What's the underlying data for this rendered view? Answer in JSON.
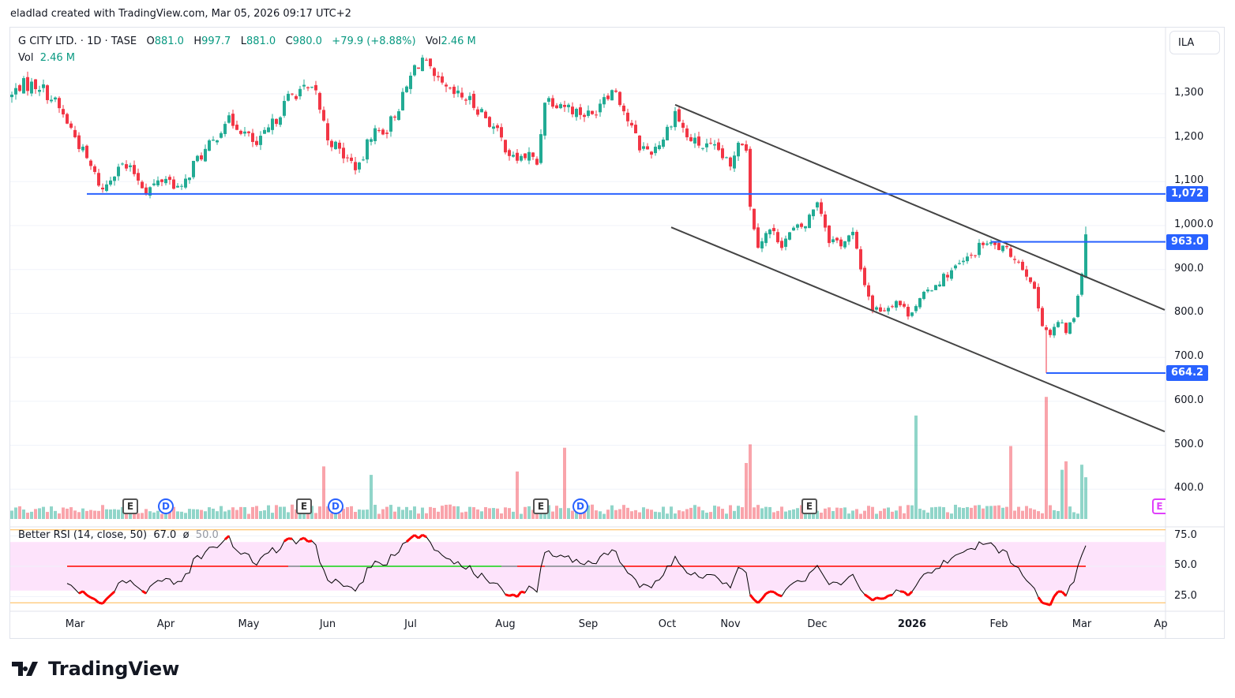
{
  "attribution": "eladlad created with TradingView.com, Mar 05, 2026 09:17 UTC+2",
  "header": {
    "symbol": "G CITY LTD. · 1D · TASE",
    "o_label": "O",
    "open": "881.0",
    "h_label": "H",
    "high": "997.7",
    "l_label": "L",
    "low": "881.0",
    "c_label": "C",
    "close": "980.0",
    "change": "+79.9 (+8.88%)",
    "vol_label": "Vol",
    "vol": "2.46 M"
  },
  "volume_legend": {
    "label": "Vol",
    "value": "2.46 M"
  },
  "rsi_legend": {
    "name": "Better RSI (14, close, 50)",
    "value": "67.0",
    "sym": "ø",
    "avg": "50.0"
  },
  "currency": "ILA",
  "logo": "TradingView",
  "colors": {
    "up": "#22ab94",
    "down": "#f23645",
    "level": "#2962ff",
    "channel": "#444",
    "rsi_band": "#fde3fb",
    "rsi_limit": "#ffb74d"
  },
  "chart_data": {
    "type": "candlestick",
    "title": "G CITY LTD. · 1D · TASE",
    "ylabel": "ILA",
    "ylim": [
      332,
      1397
    ],
    "price_ticks": [
      "1,300",
      "1,200",
      "1,100",
      "1,000.0",
      "900.0",
      "800.0",
      "700.0",
      "600.0",
      "500.0",
      "400.0"
    ],
    "price_tick_values": [
      1300,
      1200,
      1100,
      1000,
      900,
      800,
      700,
      600,
      500,
      400
    ],
    "close_keypoints": [
      [
        0,
        1295
      ],
      [
        2,
        1320
      ],
      [
        7,
        1320
      ],
      [
        11,
        1280
      ],
      [
        15,
        1220
      ],
      [
        19,
        1150
      ],
      [
        23,
        1080
      ],
      [
        27,
        1140
      ],
      [
        31,
        1120
      ],
      [
        34,
        1080
      ],
      [
        39,
        1110
      ],
      [
        43,
        1080
      ],
      [
        46,
        1140
      ],
      [
        51,
        1190
      ],
      [
        54,
        1240
      ],
      [
        57,
        1230
      ],
      [
        62,
        1180
      ],
      [
        66,
        1230
      ],
      [
        70,
        1290
      ],
      [
        73,
        1310
      ],
      [
        77,
        1300
      ],
      [
        80,
        1200
      ],
      [
        85,
        1150
      ],
      [
        88,
        1130
      ],
      [
        91,
        1210
      ],
      [
        95,
        1220
      ],
      [
        99,
        1290
      ],
      [
        102,
        1360
      ],
      [
        104,
        1380
      ],
      [
        107,
        1330
      ],
      [
        111,
        1300
      ],
      [
        115,
        1290
      ],
      [
        119,
        1260
      ],
      [
        123,
        1210
      ],
      [
        127,
        1150
      ],
      [
        131,
        1160
      ],
      [
        133,
        1140
      ],
      [
        135,
        1290
      ],
      [
        139,
        1280
      ],
      [
        143,
        1260
      ],
      [
        147,
        1250
      ],
      [
        150,
        1300
      ],
      [
        153,
        1310
      ],
      [
        156,
        1240
      ],
      [
        159,
        1180
      ],
      [
        162,
        1170
      ],
      [
        165,
        1200
      ],
      [
        168,
        1260
      ],
      [
        171,
        1200
      ],
      [
        175,
        1180
      ],
      [
        179,
        1170
      ],
      [
        182,
        1130
      ],
      [
        184,
        1200
      ],
      [
        186,
        1180
      ],
      [
        187,
        1040
      ],
      [
        189,
        960
      ],
      [
        192,
        990
      ],
      [
        195,
        960
      ],
      [
        198,
        990
      ],
      [
        201,
        1000
      ],
      [
        204,
        1060
      ],
      [
        207,
        970
      ],
      [
        210,
        960
      ],
      [
        213,
        980
      ],
      [
        215,
        900
      ],
      [
        218,
        810
      ],
      [
        221,
        810
      ],
      [
        224,
        830
      ],
      [
        227,
        800
      ],
      [
        230,
        830
      ],
      [
        233,
        860
      ],
      [
        237,
        890
      ],
      [
        240,
        910
      ],
      [
        243,
        930
      ],
      [
        246,
        960
      ],
      [
        250,
        950
      ],
      [
        254,
        930
      ],
      [
        258,
        880
      ],
      [
        261,
        780
      ],
      [
        263,
        750
      ],
      [
        265,
        780
      ],
      [
        267,
        760
      ],
      [
        269,
        790
      ],
      [
        271,
        901
      ],
      [
        272,
        980
      ]
    ],
    "last_bar": {
      "open": 881.0,
      "high": 997.7,
      "low": 881.0,
      "close": 980.0,
      "volume_m": 2.46
    },
    "volume_spikes_m": [
      [
        79,
        3.1
      ],
      [
        91,
        2.6
      ],
      [
        128,
        2.8
      ],
      [
        140,
        4.2
      ],
      [
        186,
        3.3
      ],
      [
        187,
        4.4
      ],
      [
        229,
        6.1
      ],
      [
        253,
        4.3
      ],
      [
        262,
        7.2
      ],
      [
        266,
        2.9
      ],
      [
        267,
        3.4
      ],
      [
        271,
        3.2
      ],
      [
        272,
        2.46
      ]
    ],
    "horizontal_levels": [
      {
        "price": 1072,
        "label": "1,072",
        "from_bar": 19
      },
      {
        "price": 963.0,
        "label": "963.0",
        "from_bar": 248
      },
      {
        "price": 664.2,
        "label": "664.2",
        "from_bar": 262
      }
    ],
    "channel": {
      "upper": [
        [
          168,
          1275
        ],
        [
          292,
          808
        ]
      ],
      "lower": [
        [
          167,
          996
        ],
        [
          292,
          531
        ]
      ]
    },
    "time_labels": [
      {
        "label": "Mar",
        "bar": 16
      },
      {
        "label": "Apr",
        "bar": 39
      },
      {
        "label": "May",
        "bar": 60
      },
      {
        "label": "Jun",
        "bar": 80
      },
      {
        "label": "Jul",
        "bar": 101
      },
      {
        "label": "Aug",
        "bar": 125
      },
      {
        "label": "Sep",
        "bar": 146
      },
      {
        "label": "Oct",
        "bar": 166
      },
      {
        "label": "Nov",
        "bar": 182
      },
      {
        "label": "Dec",
        "bar": 204
      },
      {
        "label": "2026",
        "bar": 228
      },
      {
        "label": "Feb",
        "bar": 250
      },
      {
        "label": "Mar",
        "bar": 271
      },
      {
        "label": "Ap",
        "bar": 291
      }
    ],
    "events": [
      {
        "type": "E",
        "bar": 30
      },
      {
        "type": "D",
        "bar": 39
      },
      {
        "type": "E",
        "bar": 74
      },
      {
        "type": "D",
        "bar": 82
      },
      {
        "type": "E",
        "bar": 134
      },
      {
        "type": "D",
        "bar": 144
      },
      {
        "type": "E",
        "bar": 202
      }
    ],
    "rsi": {
      "period": 14,
      "avg_period": 50,
      "ticks": [
        "75.0",
        "50.0",
        "25.0"
      ],
      "tick_values": [
        75,
        50,
        25
      ],
      "band": [
        30,
        70
      ],
      "limits": [
        20,
        80
      ],
      "last": 67.0
    }
  }
}
